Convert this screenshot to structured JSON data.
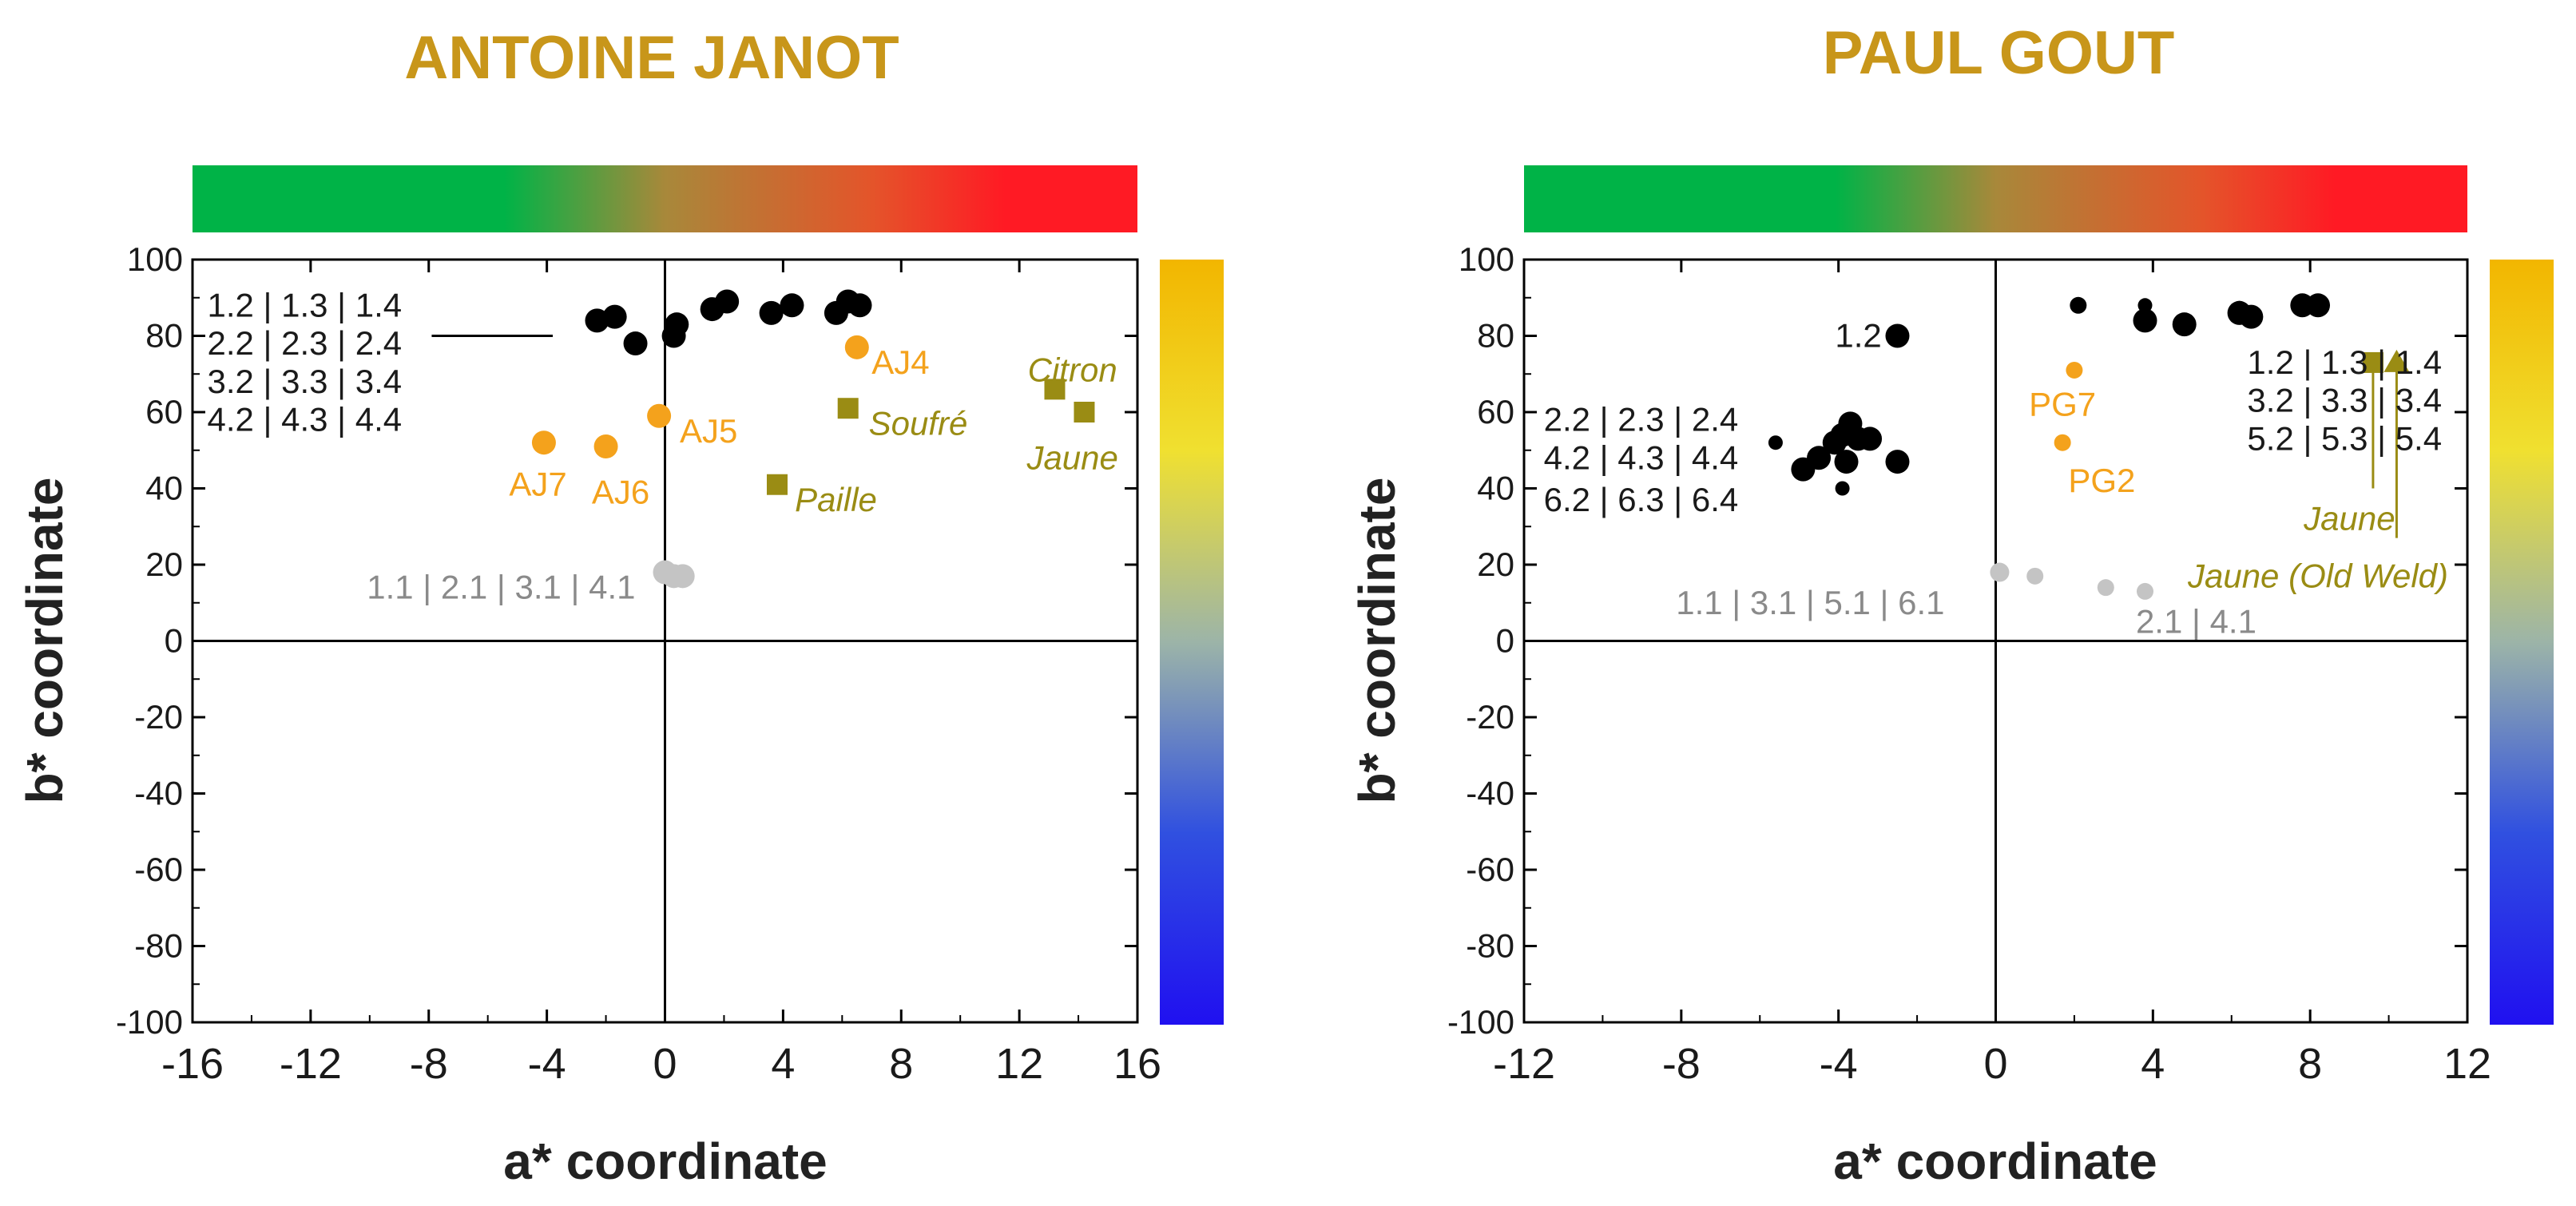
{
  "chart_data": [
    {
      "id": "aj",
      "type": "scatter",
      "title": "ANTOINE JANOT",
      "xlabel": "a* coordinate",
      "ylabel": "b* coordinate",
      "xlim": [
        -16,
        16
      ],
      "ylim": [
        -100,
        100
      ],
      "xticks": [
        -16,
        -12,
        -8,
        -4,
        0,
        4,
        8,
        12,
        16
      ],
      "yticks": [
        -100,
        -80,
        -60,
        -40,
        -20,
        0,
        20,
        40,
        60,
        80,
        100
      ],
      "title_color": "#c8961a",
      "gradient_bar": [
        "#00b347",
        "#00b347",
        "#a8883a",
        "#e4542a",
        "#ff1a24",
        "#ff1a24"
      ],
      "colorbar": [
        "#f2b600",
        "#f0e030",
        "#9cb4a8",
        "#3050e0",
        "#2010f0"
      ],
      "series": [
        {
          "name": "black",
          "color": "#000000",
          "marker": "circle",
          "points": [
            {
              "x": -2.3,
              "y": 84,
              "s": 1
            },
            {
              "x": -1.7,
              "y": 85,
              "s": 1
            },
            {
              "x": -1.0,
              "y": 78,
              "s": 1
            },
            {
              "x": 0.3,
              "y": 80,
              "s": 1
            },
            {
              "x": 0.4,
              "y": 83,
              "s": 1
            },
            {
              "x": 1.6,
              "y": 87,
              "s": 1
            },
            {
              "x": 2.1,
              "y": 89,
              "s": 1
            },
            {
              "x": 3.6,
              "y": 86,
              "s": 1
            },
            {
              "x": 4.3,
              "y": 88,
              "s": 1
            },
            {
              "x": 5.8,
              "y": 86,
              "s": 1
            },
            {
              "x": 6.2,
              "y": 89,
              "s": 1
            },
            {
              "x": 6.6,
              "y": 88,
              "s": 1
            }
          ]
        },
        {
          "name": "orange",
          "color": "#f4a21c",
          "marker": "circle",
          "points": [
            {
              "x": 6.5,
              "y": 77,
              "s": 1
            },
            {
              "x": -0.2,
              "y": 59,
              "s": 1
            },
            {
              "x": -4.1,
              "y": 52,
              "s": 1
            },
            {
              "x": -2.0,
              "y": 51,
              "s": 1
            }
          ]
        },
        {
          "name": "olive",
          "color": "#9a8c14",
          "marker": "square",
          "points": [
            {
              "x": 6.2,
              "y": 61,
              "s": 1
            },
            {
              "x": 3.8,
              "y": 41,
              "s": 1
            },
            {
              "x": 13.2,
              "y": 66,
              "s": 1
            },
            {
              "x": 14.2,
              "y": 60,
              "s": 1
            }
          ]
        },
        {
          "name": "gray",
          "color": "#c4c4c4",
          "marker": "circle",
          "points": [
            {
              "x": 0.0,
              "y": 18,
              "s": 1
            },
            {
              "x": 0.3,
              "y": 17,
              "s": 1
            },
            {
              "x": 0.6,
              "y": 17,
              "s": 1
            }
          ]
        }
      ],
      "labels": [
        {
          "text": "1.2 | 1.3 | 1.4",
          "x": -15.5,
          "y": 88,
          "anchor": "start",
          "color": "#1a1a1a",
          "italic": false
        },
        {
          "text": "2.2 | 2.3 | 2.4",
          "x": -15.5,
          "y": 78,
          "anchor": "start",
          "color": "#1a1a1a",
          "italic": false
        },
        {
          "text": "3.2 | 3.3 | 3.4",
          "x": -15.5,
          "y": 68,
          "anchor": "start",
          "color": "#1a1a1a",
          "italic": false
        },
        {
          "text": "4.2 | 4.3 | 4.4",
          "x": -15.5,
          "y": 58,
          "anchor": "start",
          "color": "#1a1a1a",
          "italic": false
        },
        {
          "text": "AJ4",
          "x": 7.0,
          "y": 73,
          "anchor": "start",
          "color": "#f4a21c",
          "italic": false
        },
        {
          "text": "AJ5",
          "x": 0.5,
          "y": 55,
          "anchor": "start",
          "color": "#f4a21c",
          "italic": false
        },
        {
          "text": "AJ7",
          "x": -4.3,
          "y": 41,
          "anchor": "middle",
          "color": "#f4a21c",
          "italic": false
        },
        {
          "text": "AJ6",
          "x": -1.5,
          "y": 39,
          "anchor": "middle",
          "color": "#f4a21c",
          "italic": false
        },
        {
          "text": "Citron",
          "x": 13.8,
          "y": 71,
          "anchor": "middle",
          "color": "#9a8c14",
          "italic": true
        },
        {
          "text": "Soufré",
          "x": 6.9,
          "y": 57,
          "anchor": "start",
          "color": "#9a8c14",
          "italic": true
        },
        {
          "text": "Jaune",
          "x": 13.8,
          "y": 48,
          "anchor": "middle",
          "color": "#9a8c14",
          "italic": true
        },
        {
          "text": "Paille",
          "x": 4.4,
          "y": 37,
          "anchor": "start",
          "color": "#9a8c14",
          "italic": true
        },
        {
          "text": "1.1 | 2.1 | 3.1 | 4.1",
          "x": -1.0,
          "y": 14,
          "anchor": "end",
          "color": "#8a8a8a",
          "italic": false
        }
      ],
      "lines": [
        {
          "x1": -7.9,
          "y1": 80,
          "x2": -3.8,
          "y2": 80,
          "color": "#000000"
        }
      ]
    },
    {
      "id": "pg",
      "type": "scatter",
      "title": "PAUL GOUT",
      "xlabel": "a* coordinate",
      "ylabel": "b* coordinate",
      "xlim": [
        -12,
        12
      ],
      "ylim": [
        -100,
        100
      ],
      "xticks": [
        -12,
        -8,
        -4,
        0,
        4,
        8,
        12
      ],
      "yticks": [
        -100,
        -80,
        -60,
        -40,
        -20,
        0,
        20,
        40,
        60,
        80,
        100
      ],
      "title_color": "#c8961a",
      "gradient_bar": [
        "#00b347",
        "#00b347",
        "#a8883a",
        "#e4542a",
        "#ff1a24",
        "#ff1a24"
      ],
      "colorbar": [
        "#f2b600",
        "#f0e030",
        "#9cb4a8",
        "#3050e0",
        "#2010f0"
      ],
      "series": [
        {
          "name": "black",
          "color": "#000000",
          "marker": "circle",
          "points": [
            {
              "x": -2.5,
              "y": 80,
              "s": 1
            },
            {
              "x": -5.6,
              "y": 52,
              "s": 0.6
            },
            {
              "x": -4.9,
              "y": 45,
              "s": 1
            },
            {
              "x": -4.5,
              "y": 48,
              "s": 1
            },
            {
              "x": -4.1,
              "y": 52,
              "s": 1
            },
            {
              "x": -3.9,
              "y": 54,
              "s": 1
            },
            {
              "x": -3.7,
              "y": 57,
              "s": 1
            },
            {
              "x": -3.5,
              "y": 53,
              "s": 1
            },
            {
              "x": -3.8,
              "y": 47,
              "s": 1
            },
            {
              "x": -3.9,
              "y": 40,
              "s": 0.6
            },
            {
              "x": -2.5,
              "y": 47,
              "s": 1
            },
            {
              "x": -3.2,
              "y": 53,
              "s": 1
            },
            {
              "x": 2.1,
              "y": 88,
              "s": 0.7
            },
            {
              "x": 3.8,
              "y": 88,
              "s": 0.6
            },
            {
              "x": 3.8,
              "y": 84,
              "s": 1
            },
            {
              "x": 4.8,
              "y": 83,
              "s": 1
            },
            {
              "x": 6.2,
              "y": 86,
              "s": 1
            },
            {
              "x": 6.5,
              "y": 85,
              "s": 1
            },
            {
              "x": 6.2,
              "y": 87,
              "s": 0.7
            },
            {
              "x": 7.8,
              "y": 88,
              "s": 1
            },
            {
              "x": 8.2,
              "y": 88,
              "s": 1
            }
          ]
        },
        {
          "name": "orange",
          "color": "#f4a21c",
          "marker": "circle",
          "points": [
            {
              "x": 2.0,
              "y": 71,
              "s": 0.7
            },
            {
              "x": 1.7,
              "y": 52,
              "s": 0.7
            }
          ]
        },
        {
          "name": "olive-square",
          "color": "#9a8c14",
          "marker": "square",
          "points": [
            {
              "x": 9.6,
              "y": 73,
              "s": 1
            }
          ]
        },
        {
          "name": "olive-triangle",
          "color": "#9a8c14",
          "marker": "triangle",
          "points": [
            {
              "x": 10.2,
              "y": 73,
              "s": 1
            }
          ]
        },
        {
          "name": "gray",
          "color": "#c4c4c4",
          "marker": "circle",
          "points": [
            {
              "x": 0.1,
              "y": 18,
              "s": 0.8
            },
            {
              "x": 1.0,
              "y": 17,
              "s": 0.7
            },
            {
              "x": 2.8,
              "y": 14,
              "s": 0.7
            },
            {
              "x": 3.8,
              "y": 13,
              "s": 0.7
            }
          ]
        }
      ],
      "labels": [
        {
          "text": "1.2",
          "x": -2.9,
          "y": 80,
          "anchor": "end",
          "color": "#1a1a1a",
          "italic": false
        },
        {
          "text": "2.2 | 2.3 | 2.4",
          "x": -11.5,
          "y": 58,
          "anchor": "start",
          "color": "#1a1a1a",
          "italic": false
        },
        {
          "text": "4.2 | 4.3 | 4.4",
          "x": -11.5,
          "y": 48,
          "anchor": "start",
          "color": "#1a1a1a",
          "italic": false
        },
        {
          "text": "6.2 | 6.3 | 6.4",
          "x": -11.5,
          "y": 37,
          "anchor": "start",
          "color": "#1a1a1a",
          "italic": false
        },
        {
          "text": "1.2 | 1.3 | 1.4",
          "x": 6.4,
          "y": 73,
          "anchor": "start",
          "color": "#1a1a1a",
          "italic": false
        },
        {
          "text": "3.2 | 3.3 | 3.4",
          "x": 6.4,
          "y": 63,
          "anchor": "start",
          "color": "#1a1a1a",
          "italic": false
        },
        {
          "text": "5.2 | 5.3 | 5.4",
          "x": 6.4,
          "y": 53,
          "anchor": "start",
          "color": "#1a1a1a",
          "italic": false
        },
        {
          "text": "PG7",
          "x": 1.7,
          "y": 62,
          "anchor": "middle",
          "color": "#f4a21c",
          "italic": false
        },
        {
          "text": "PG2",
          "x": 2.7,
          "y": 42,
          "anchor": "middle",
          "color": "#f4a21c",
          "italic": false
        },
        {
          "text": "Jaune",
          "x": 9.0,
          "y": 32,
          "anchor": "middle",
          "color": "#9a8c14",
          "italic": true
        },
        {
          "text": "Jaune (Old Weld)",
          "x": 8.2,
          "y": 17,
          "anchor": "middle",
          "color": "#9a8c14",
          "italic": true
        },
        {
          "text": "1.1 | 3.1 | 5.1 | 6.1",
          "x": -1.3,
          "y": 10,
          "anchor": "end",
          "color": "#8a8a8a",
          "italic": false
        },
        {
          "text": "2.1 | 4.1",
          "x": 5.1,
          "y": 5,
          "anchor": "middle",
          "color": "#8a8a8a",
          "italic": false
        }
      ],
      "lines": [
        {
          "x1": 9.6,
          "y1": 71,
          "x2": 9.6,
          "y2": 40,
          "color": "#9a8c14"
        },
        {
          "x1": 10.2,
          "y1": 71,
          "x2": 10.2,
          "y2": 27,
          "color": "#9a8c14"
        }
      ]
    }
  ]
}
